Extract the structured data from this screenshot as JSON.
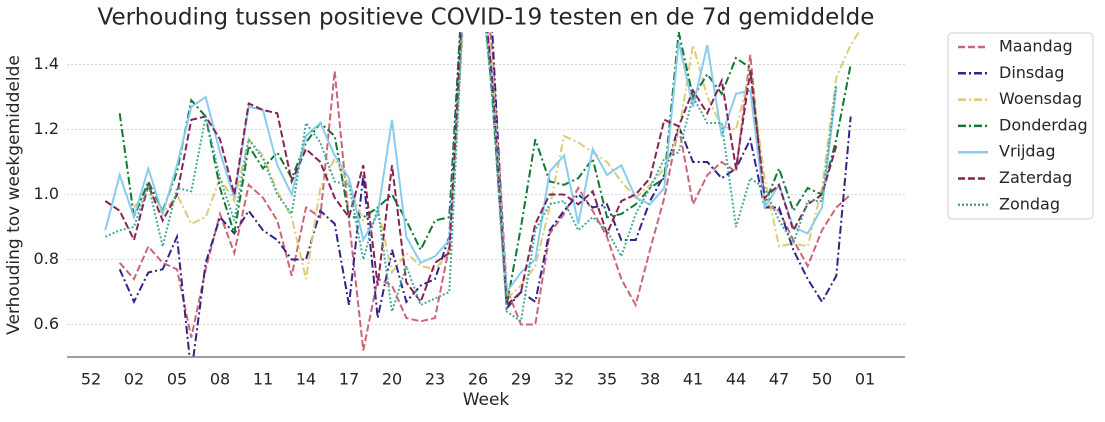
{
  "chart_data": {
    "type": "line",
    "title": "Verhouding tussen positieve COVID-19 testen en de 7d gemiddelde",
    "x_label": "Week",
    "y_label": "Verhouding tov weekgemiddelde",
    "categories": [
      "52",
      null,
      null,
      "02",
      null,
      null,
      "05",
      null,
      null,
      "08",
      null,
      null,
      "11",
      null,
      null,
      "14",
      null,
      null,
      "17",
      null,
      null,
      "20",
      null,
      null,
      "23",
      null,
      null,
      "26",
      null,
      null,
      "29",
      null,
      null,
      "32",
      null,
      null,
      "35",
      null,
      null,
      "38",
      null,
      null,
      "41",
      null,
      null,
      "44",
      null,
      null,
      "47",
      null,
      null,
      "50",
      null,
      null,
      "01"
    ],
    "ylim": [
      0.5,
      1.5
    ],
    "yticks": [
      0.6,
      0.8,
      {
        "value": 1,
        "label": "1.0"
      },
      1.2,
      1.4
    ],
    "grid": true,
    "legend": "outside-right",
    "series": [
      {
        "name": "Maandag",
        "color": "#cc6677",
        "dash": "dashed",
        "values": [
          null,
          null,
          0.79,
          0.74,
          0.84,
          0.79,
          0.77,
          0.56,
          0.77,
          0.94,
          0.82,
          1.03,
          0.99,
          0.92,
          0.75,
          0.96,
          0.93,
          1.38,
          0.92,
          0.52,
          0.74,
          0.72,
          0.62,
          0.61,
          0.62,
          0.84,
          1.6,
          1.8,
          1.45,
          0.71,
          0.6,
          0.6,
          0.88,
          0.94,
          1.02,
          0.95,
          0.87,
          0.74,
          0.66,
          0.83,
          0.99,
          1.21,
          0.97,
          1.06,
          1.1,
          1.07,
          1.43,
          0.97,
          0.95,
          0.86,
          0.78,
          0.89,
          0.96,
          1.0,
          null
        ]
      },
      {
        "name": "Dinsdag",
        "color": "#332288",
        "dash": "dashdot",
        "values": [
          null,
          null,
          0.77,
          0.67,
          0.76,
          0.77,
          0.87,
          0.45,
          0.79,
          0.93,
          0.88,
          0.95,
          0.89,
          0.86,
          0.8,
          0.8,
          0.95,
          0.91,
          0.66,
          1.06,
          0.62,
          0.83,
          0.67,
          0.72,
          0.74,
          0.87,
          1.7,
          1.8,
          1.5,
          0.65,
          0.7,
          0.67,
          0.89,
          0.95,
          1.0,
          0.96,
          0.97,
          0.86,
          0.86,
          0.98,
          1.06,
          1.21,
          1.1,
          1.1,
          1.05,
          1.08,
          1.17,
          0.96,
          0.96,
          0.83,
          0.74,
          0.67,
          0.75,
          1.24,
          null
        ]
      },
      {
        "name": "Woensdag",
        "color": "#ddcc77",
        "dash": "dashdot",
        "values": [
          null,
          null,
          null,
          0.96,
          1.02,
          0.94,
          1.0,
          0.91,
          0.93,
          1.05,
          0.98,
          1.17,
          1.12,
          1.01,
          0.93,
          0.74,
          1.02,
          1.11,
          1.03,
          0.92,
          0.96,
          0.76,
          0.82,
          0.78,
          0.77,
          0.82,
          1.55,
          1.75,
          1.4,
          0.68,
          0.72,
          0.78,
          0.96,
          1.18,
          1.16,
          1.13,
          1.1,
          1.04,
          0.99,
          1.03,
          1.08,
          1.19,
          1.46,
          1.3,
          1.21,
          1.2,
          1.38,
          1.05,
          0.84,
          0.85,
          0.84,
          1.02,
          1.36,
          1.46,
          1.53
        ]
      },
      {
        "name": "Donderdag",
        "color": "#117733",
        "dash": "dashdot",
        "values": [
          null,
          null,
          1.25,
          0.93,
          1.04,
          0.95,
          1.07,
          1.29,
          1.24,
          1.02,
          0.88,
          1.15,
          1.08,
          1.13,
          1.05,
          1.16,
          1.22,
          1.18,
          0.93,
          0.93,
          0.96,
          1.0,
          0.92,
          0.83,
          0.92,
          0.93,
          1.7,
          1.8,
          1.3,
          0.66,
          0.9,
          1.17,
          1.04,
          1.03,
          1.05,
          1.11,
          0.93,
          0.94,
          0.97,
          1.02,
          1.05,
          1.5,
          1.3,
          1.37,
          1.31,
          1.42,
          1.39,
          0.97,
          1.08,
          0.95,
          1.02,
          1.0,
          1.17,
          1.4,
          null
        ]
      },
      {
        "name": "Vrijdag",
        "color": "#88ccee",
        "dash": "solid",
        "values": [
          null,
          0.89,
          1.06,
          0.93,
          1.08,
          0.94,
          1.09,
          1.27,
          1.3,
          1.13,
          0.99,
          1.27,
          1.26,
          1.09,
          1.0,
          1.18,
          1.22,
          1.12,
          1.05,
          0.86,
          0.94,
          1.23,
          0.87,
          0.79,
          0.81,
          0.86,
          1.6,
          1.8,
          1.35,
          0.7,
          0.76,
          0.8,
          1.07,
          1.12,
          0.91,
          1.14,
          1.06,
          1.09,
          0.99,
          0.97,
          1.02,
          1.47,
          1.27,
          1.46,
          1.18,
          1.31,
          1.32,
          0.96,
          1.03,
          0.9,
          0.88,
          0.96,
          1.33,
          null,
          null
        ]
      },
      {
        "name": "Zaterdag",
        "color": "#882255",
        "dash": "dashed",
        "values": [
          null,
          0.98,
          0.95,
          0.86,
          1.03,
          0.92,
          1.0,
          1.23,
          1.24,
          1.17,
          1.0,
          1.28,
          1.26,
          1.25,
          1.04,
          1.14,
          1.1,
          0.99,
          0.93,
          1.09,
          0.72,
          1.09,
          0.73,
          0.67,
          0.79,
          0.82,
          1.65,
          1.8,
          1.35,
          0.66,
          0.7,
          0.91,
          1.0,
          1.0,
          0.97,
          1.01,
          0.88,
          0.98,
          1.0,
          1.05,
          1.23,
          1.21,
          1.32,
          1.25,
          1.35,
          1.08,
          1.38,
          0.99,
          1.03,
          0.89,
          0.97,
          1.0,
          1.15,
          null,
          null
        ]
      },
      {
        "name": "Zondag",
        "color": "#44aa99",
        "dash": "dotted",
        "values": [
          null,
          0.87,
          0.89,
          0.9,
          1.03,
          0.84,
          1.02,
          1.01,
          1.24,
          1.05,
          0.92,
          1.17,
          1.11,
          1.0,
          0.94,
          1.22,
          1.16,
          1.04,
          1.03,
          0.8,
          0.96,
          0.64,
          0.78,
          0.66,
          0.68,
          0.7,
          1.6,
          1.75,
          1.3,
          0.64,
          0.61,
          0.89,
          0.97,
          0.98,
          0.89,
          0.93,
          0.89,
          0.81,
          0.94,
          1.02,
          1.11,
          1.13,
          1.3,
          1.22,
          1.22,
          0.9,
          1.05,
          1.02,
          0.92,
          0.85,
          0.98,
          0.98,
          1.34,
          null,
          null
        ]
      }
    ]
  }
}
